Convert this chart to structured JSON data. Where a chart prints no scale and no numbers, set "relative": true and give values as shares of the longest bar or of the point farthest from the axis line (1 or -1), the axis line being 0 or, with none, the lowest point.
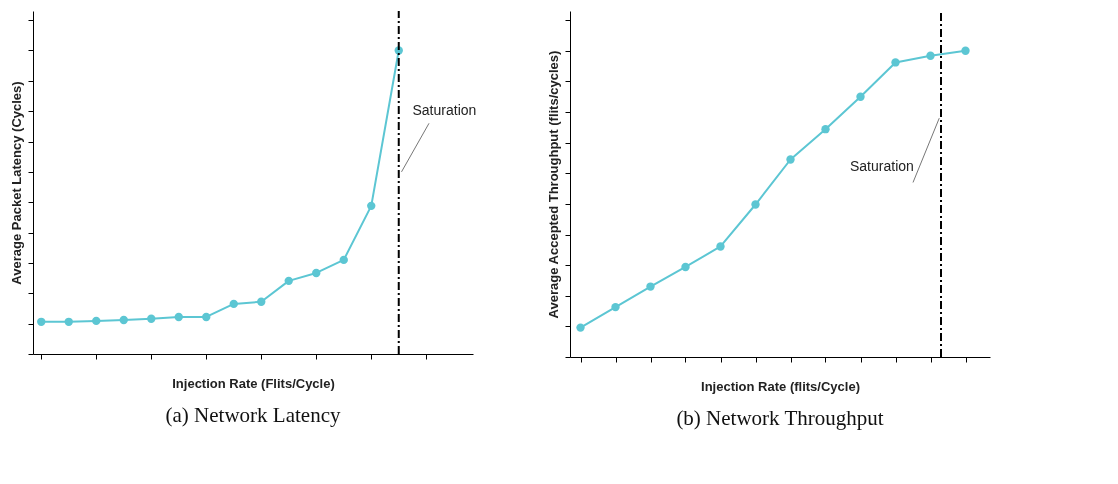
{
  "chart_data": [
    {
      "type": "line",
      "title": "(a) Network Latency",
      "xlabel": "Injection Rate (Flits/Cycle)",
      "ylabel": "Average Packet Latency (Cycles)",
      "relative": true,
      "marker": "circle",
      "categories": [
        null,
        null,
        null,
        null,
        null,
        null,
        null,
        null,
        null,
        null,
        null,
        null,
        null,
        null
      ],
      "series": [
        {
          "color": "#5cc6d3",
          "values": [
            0.106,
            0.106,
            0.109,
            0.112,
            0.116,
            0.122,
            0.122,
            0.165,
            0.172,
            0.241,
            0.267,
            0.31,
            0.488,
            1
          ]
        }
      ],
      "annotations": [
        "Saturation"
      ]
    },
    {
      "type": "line",
      "title": "(b) Network Throughput",
      "xlabel": "Injection Rate (flits/Cycle)",
      "ylabel": "Average Accepted Throughput (flits/cycles)",
      "relative": true,
      "marker": "circle",
      "categories": [
        null,
        null,
        null,
        null,
        null,
        null,
        null,
        null,
        null,
        null,
        null,
        null
      ],
      "series": [
        {
          "color": "#5cc6d3",
          "values": [
            0.096,
            0.163,
            0.23,
            0.294,
            0.361,
            0.498,
            0.645,
            0.744,
            0.85,
            0.962,
            0.984,
            1
          ]
        }
      ],
      "annotations": [
        "Saturation"
      ]
    }
  ]
}
